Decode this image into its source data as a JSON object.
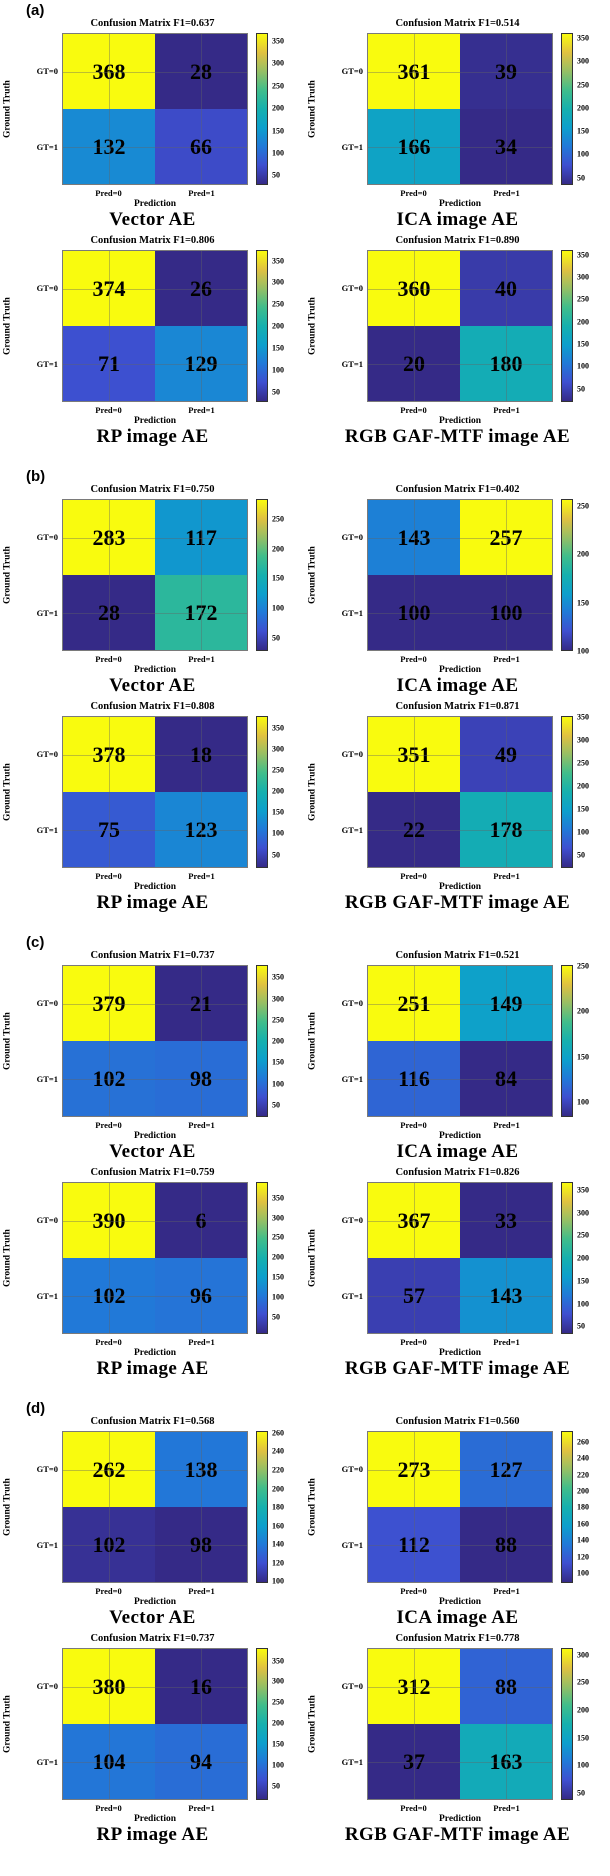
{
  "panels": [
    {
      "id": "a",
      "label": "(a)"
    },
    {
      "id": "b",
      "label": "(b)"
    },
    {
      "id": "c",
      "label": "(c)"
    },
    {
      "id": "d",
      "label": "(d)"
    }
  ],
  "colormap": {
    "name": "parula",
    "stops": [
      "#352a87",
      "#3e4fd0",
      "#2179d8",
      "#0d9fcc",
      "#16b0ae",
      "#40bd8b",
      "#95bf65",
      "#e0c141",
      "#f9fb0e"
    ]
  },
  "chart_data": [
    {
      "type": "heatmap",
      "panel": "a",
      "title": "Confusion Matrix F1=0.637",
      "f1": "0.637",
      "model": "Vector AE",
      "ylabel": "Ground Truth",
      "xlabel": "Prediction",
      "rows": [
        "GT=0",
        "GT=1"
      ],
      "cols": [
        "Pred=0",
        "Pred=1"
      ],
      "values": [
        [
          368,
          28
        ],
        [
          132,
          66
        ]
      ],
      "colorbar_ticks": [
        50,
        100,
        150,
        200,
        250,
        300,
        350
      ]
    },
    {
      "type": "heatmap",
      "panel": "a",
      "title": "Confusion Matrix F1=0.514",
      "f1": "0.514",
      "model": "ICA image AE",
      "ylabel": "Ground Truth",
      "xlabel": "Prediction",
      "rows": [
        "GT=0",
        "GT=1"
      ],
      "cols": [
        "Pred=0",
        "Pred=1"
      ],
      "values": [
        [
          361,
          39
        ],
        [
          166,
          34
        ]
      ],
      "colorbar_ticks": [
        50,
        100,
        150,
        200,
        250,
        300,
        350
      ]
    },
    {
      "type": "heatmap",
      "panel": "a",
      "title": "Confusion Matrix F1=0.806",
      "f1": "0.806",
      "model": "RP image AE",
      "ylabel": "Ground Truth",
      "xlabel": "Prediction",
      "rows": [
        "GT=0",
        "GT=1"
      ],
      "cols": [
        "Pred=0",
        "Pred=1"
      ],
      "values": [
        [
          374,
          26
        ],
        [
          71,
          129
        ]
      ],
      "colorbar_ticks": [
        50,
        100,
        150,
        200,
        250,
        300,
        350
      ]
    },
    {
      "type": "heatmap",
      "panel": "a",
      "title": "Confusion Matrix F1=0.890",
      "f1": "0.890",
      "model": "RGB GAF-MTF image AE",
      "ylabel": "Ground Truth",
      "xlabel": "Prediction",
      "rows": [
        "GT=0",
        "GT=1"
      ],
      "cols": [
        "Pred=0",
        "Pred=1"
      ],
      "values": [
        [
          360,
          40
        ],
        [
          20,
          180
        ]
      ],
      "colorbar_ticks": [
        50,
        100,
        150,
        200,
        250,
        300,
        350
      ]
    },
    {
      "type": "heatmap",
      "panel": "b",
      "title": "Confusion Matrix F1=0.750",
      "f1": "0.750",
      "model": "Vector AE",
      "ylabel": "Ground Truth",
      "xlabel": "Prediction",
      "rows": [
        "GT=0",
        "GT=1"
      ],
      "cols": [
        "Pred=0",
        "Pred=1"
      ],
      "values": [
        [
          283,
          117
        ],
        [
          28,
          172
        ]
      ],
      "colorbar_ticks": [
        50,
        100,
        150,
        200,
        250
      ]
    },
    {
      "type": "heatmap",
      "panel": "b",
      "title": "Confusion Matrix F1=0.402",
      "f1": "0.402",
      "model": "ICA image AE",
      "ylabel": "Ground Truth",
      "xlabel": "Prediction",
      "rows": [
        "GT=0",
        "GT=1"
      ],
      "cols": [
        "Pred=0",
        "Pred=1"
      ],
      "values": [
        [
          143,
          257
        ],
        [
          100,
          100
        ]
      ],
      "colorbar_ticks": [
        100,
        150,
        200,
        250
      ]
    },
    {
      "type": "heatmap",
      "panel": "b",
      "title": "Confusion Matrix F1=0.808",
      "f1": "0.808",
      "model": "RP image AE",
      "ylabel": "Ground Truth",
      "xlabel": "Prediction",
      "rows": [
        "GT=0",
        "GT=1"
      ],
      "cols": [
        "Pred=0",
        "Pred=1"
      ],
      "values": [
        [
          378,
          18
        ],
        [
          75,
          123
        ]
      ],
      "colorbar_ticks": [
        50,
        100,
        150,
        200,
        250,
        300,
        350
      ]
    },
    {
      "type": "heatmap",
      "panel": "b",
      "title": "Confusion Matrix F1=0.871",
      "f1": "0.871",
      "model": "RGB GAF-MTF image AE",
      "ylabel": "Ground Truth",
      "xlabel": "Prediction",
      "rows": [
        "GT=0",
        "GT=1"
      ],
      "cols": [
        "Pred=0",
        "Pred=1"
      ],
      "values": [
        [
          351,
          49
        ],
        [
          22,
          178
        ]
      ],
      "colorbar_ticks": [
        50,
        100,
        150,
        200,
        250,
        300,
        350
      ]
    },
    {
      "type": "heatmap",
      "panel": "c",
      "title": "Confusion Matrix F1=0.737",
      "f1": "0.737",
      "model": "Vector AE",
      "ylabel": "Ground Truth",
      "xlabel": "Prediction",
      "rows": [
        "GT=0",
        "GT=1"
      ],
      "cols": [
        "Pred=0",
        "Pred=1"
      ],
      "values": [
        [
          379,
          21
        ],
        [
          102,
          98
        ]
      ],
      "colorbar_ticks": [
        50,
        100,
        150,
        200,
        250,
        300,
        350
      ]
    },
    {
      "type": "heatmap",
      "panel": "c",
      "title": "Confusion Matrix F1=0.521",
      "f1": "0.521",
      "model": "ICA image AE",
      "ylabel": "Ground Truth",
      "xlabel": "Prediction",
      "rows": [
        "GT=0",
        "GT=1"
      ],
      "cols": [
        "Pred=0",
        "Pred=1"
      ],
      "values": [
        [
          251,
          149
        ],
        [
          116,
          84
        ]
      ],
      "colorbar_ticks": [
        100,
        150,
        200,
        250
      ]
    },
    {
      "type": "heatmap",
      "panel": "c",
      "title": "Confusion Matrix F1=0.759",
      "f1": "0.759",
      "model": "RP image AE",
      "ylabel": "Ground Truth",
      "xlabel": "Prediction",
      "rows": [
        "GT=0",
        "GT=1"
      ],
      "cols": [
        "Pred=0",
        "Pred=1"
      ],
      "values": [
        [
          390,
          6
        ],
        [
          102,
          96
        ]
      ],
      "colorbar_ticks": [
        50,
        100,
        150,
        200,
        250,
        300,
        350
      ]
    },
    {
      "type": "heatmap",
      "panel": "c",
      "title": "Confusion Matrix F1=0.826",
      "f1": "0.826",
      "model": "RGB GAF-MTF image AE",
      "ylabel": "Ground Truth",
      "xlabel": "Prediction",
      "rows": [
        "GT=0",
        "GT=1"
      ],
      "cols": [
        "Pred=0",
        "Pred=1"
      ],
      "values": [
        [
          367,
          33
        ],
        [
          57,
          143
        ]
      ],
      "colorbar_ticks": [
        50,
        100,
        150,
        200,
        250,
        300,
        350
      ]
    },
    {
      "type": "heatmap",
      "panel": "d",
      "title": "Confusion Matrix F1=0.568",
      "f1": "0.568",
      "model": "Vector AE",
      "ylabel": "Ground Truth",
      "xlabel": "Prediction",
      "rows": [
        "GT=0",
        "GT=1"
      ],
      "cols": [
        "Pred=0",
        "Pred=1"
      ],
      "values": [
        [
          262,
          138
        ],
        [
          102,
          98
        ]
      ],
      "colorbar_ticks": [
        100,
        120,
        140,
        160,
        180,
        200,
        220,
        240,
        260
      ]
    },
    {
      "type": "heatmap",
      "panel": "d",
      "title": "Confusion Matrix F1=0.560",
      "f1": "0.560",
      "model": "ICA image AE",
      "ylabel": "Ground Truth",
      "xlabel": "Prediction",
      "rows": [
        "GT=0",
        "GT=1"
      ],
      "cols": [
        "Pred=0",
        "Pred=1"
      ],
      "values": [
        [
          273,
          127
        ],
        [
          112,
          88
        ]
      ],
      "colorbar_ticks": [
        100,
        120,
        140,
        160,
        180,
        200,
        220,
        240,
        260
      ]
    },
    {
      "type": "heatmap",
      "panel": "d",
      "title": "Confusion Matrix F1=0.737",
      "f1": "0.737",
      "model": "RP image AE",
      "ylabel": "Ground Truth",
      "xlabel": "Prediction",
      "rows": [
        "GT=0",
        "GT=1"
      ],
      "cols": [
        "Pred=0",
        "Pred=1"
      ],
      "values": [
        [
          380,
          16
        ],
        [
          104,
          94
        ]
      ],
      "colorbar_ticks": [
        50,
        100,
        150,
        200,
        250,
        300,
        350
      ]
    },
    {
      "type": "heatmap",
      "panel": "d",
      "title": "Confusion Matrix F1=0.778",
      "f1": "0.778",
      "model": "RGB GAF-MTF image AE",
      "ylabel": "Ground Truth",
      "xlabel": "Prediction",
      "rows": [
        "GT=0",
        "GT=1"
      ],
      "cols": [
        "Pred=0",
        "Pred=1"
      ],
      "values": [
        [
          312,
          88
        ],
        [
          37,
          163
        ]
      ],
      "colorbar_ticks": [
        50,
        100,
        150,
        200,
        250,
        300,
        50
      ]
    }
  ]
}
